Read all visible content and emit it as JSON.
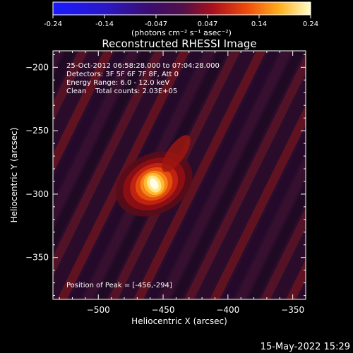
{
  "chart_data": {
    "type": "heatmap",
    "title": "Reconstructed RHESSI Image",
    "xlabel": "Heliocentric X (arcsec)",
    "ylabel": "Heliocentric Y (arcsec)",
    "xlim": [
      -535,
      -340
    ],
    "ylim": [
      -383,
      -187
    ],
    "xticks": [
      -500,
      -450,
      -400,
      -350
    ],
    "yticks": [
      -200,
      -250,
      -300,
      -350
    ],
    "colorbar": {
      "min": -0.24,
      "max": 0.24,
      "ticks": [
        "-0.24",
        "-0.14",
        "-0.047",
        "0.047",
        "0.14",
        "0.24"
      ],
      "unit_label": "(photons cm⁻² s⁻¹ asec⁻²)"
    },
    "annotations": [
      "25-Oct-2012 06:58:28.000 to 07:04:28.000",
      "Detectors: 3F 5F 6F 7F 8F, Att 0",
      "Energy Range: 6.0 - 12.0 keV",
      "Clean    Total counts: 2.03E+05"
    ],
    "peak_label": "Position of Peak = [-456,-294]",
    "peak": [
      -456,
      -294
    ],
    "source": {
      "x": -457,
      "y": -292,
      "peak_value": 0.24,
      "sigma_arcsec": 12
    },
    "colormap": "hot (black-purple-red-yellow-white)"
  },
  "footer": {
    "timestamp": "15-May-2022 15:29"
  }
}
